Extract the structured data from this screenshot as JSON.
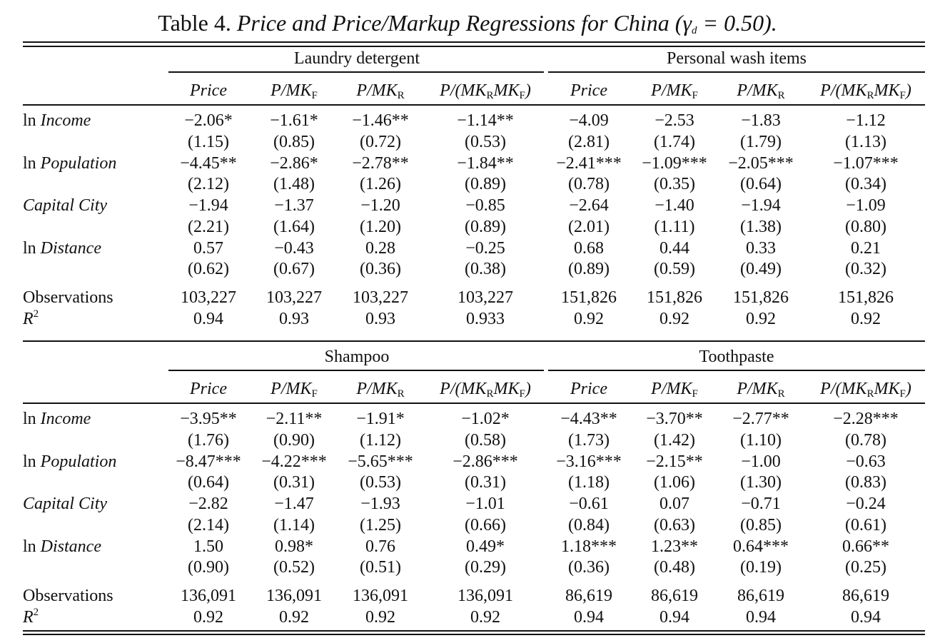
{
  "title": {
    "prefix": "Table 4.",
    "italic": "Price and Price/Markup Regressions for China (γ",
    "sub": "d",
    "suffix": " = 0.50)."
  },
  "column_heads": [
    "Price",
    "P/MK_F",
    "P/MK_R",
    "P/(MK_R MK_F)"
  ],
  "row_labels": {
    "income": {
      "pre": "ln ",
      "it": "Income"
    },
    "population": {
      "pre": "ln ",
      "it": "Population"
    },
    "capital": {
      "pre": "",
      "it": "Capital City"
    },
    "distance": {
      "pre": "ln ",
      "it": "Distance"
    },
    "observations": "Observations",
    "r2": "R"
  },
  "panels": [
    {
      "groups": [
        "Laundry detergent",
        "Personal wash items"
      ],
      "rows": {
        "income": [
          [
            "−2.06*",
            "−1.61*",
            "−1.46**",
            "−1.14**",
            "−4.09",
            "−2.53",
            "−1.83",
            "−1.12"
          ],
          [
            "(1.15)",
            "(0.85)",
            "(0.72)",
            "(0.53)",
            "(2.81)",
            "(1.74)",
            "(1.79)",
            "(1.13)"
          ]
        ],
        "population": [
          [
            "−4.45**",
            "−2.86*",
            "−2.78**",
            "−1.84**",
            "−2.41***",
            "−1.09***",
            "−2.05***",
            "−1.07***"
          ],
          [
            "(2.12)",
            "(1.48)",
            "(1.26)",
            "(0.89)",
            "(0.78)",
            "(0.35)",
            "(0.64)",
            "(0.34)"
          ]
        ],
        "capital": [
          [
            "−1.94",
            "−1.37",
            "−1.20",
            "−0.85",
            "−2.64",
            "−1.40",
            "−1.94",
            "−1.09"
          ],
          [
            "(2.21)",
            "(1.64)",
            "(1.20)",
            "(0.89)",
            "(2.01)",
            "(1.11)",
            "(1.38)",
            "(0.80)"
          ]
        ],
        "distance": [
          [
            "0.57",
            "−0.43",
            "0.28",
            "−0.25",
            "0.68",
            "0.44",
            "0.33",
            "0.21"
          ],
          [
            "(0.62)",
            "(0.67)",
            "(0.36)",
            "(0.38)",
            "(0.89)",
            "(0.59)",
            "(0.49)",
            "(0.32)"
          ]
        ],
        "observations": [
          "103,227",
          "103,227",
          "103,227",
          "103,227",
          "151,826",
          "151,826",
          "151,826",
          "151,826"
        ],
        "r2": [
          "0.94",
          "0.93",
          "0.93",
          "0.933",
          "0.92",
          "0.92",
          "0.92",
          "0.92"
        ]
      }
    },
    {
      "groups": [
        "Shampoo",
        "Toothpaste"
      ],
      "rows": {
        "income": [
          [
            "−3.95**",
            "−2.11**",
            "−1.91*",
            "−1.02*",
            "−4.43**",
            "−3.70**",
            "−2.77**",
            "−2.28***"
          ],
          [
            "(1.76)",
            "(0.90)",
            "(1.12)",
            "(0.58)",
            "(1.73)",
            "(1.42)",
            "(1.10)",
            "(0.78)"
          ]
        ],
        "population": [
          [
            "−8.47***",
            "−4.22***",
            "−5.65***",
            "−2.86***",
            "−3.16***",
            "−2.15**",
            "−1.00",
            "−0.63"
          ],
          [
            "(0.64)",
            "(0.31)",
            "(0.53)",
            "(0.31)",
            "(1.18)",
            "(1.06)",
            "(1.30)",
            "(0.83)"
          ]
        ],
        "capital": [
          [
            "−2.82",
            "−1.47",
            "−1.93",
            "−1.01",
            "−0.61",
            "0.07",
            "−0.71",
            "−0.24"
          ],
          [
            "(2.14)",
            "(1.14)",
            "(1.25)",
            "(0.66)",
            "(0.84)",
            "(0.63)",
            "(0.85)",
            "(0.61)"
          ]
        ],
        "distance": [
          [
            "1.50",
            "0.98*",
            "0.76",
            "0.49*",
            "1.18***",
            "1.23**",
            "0.64***",
            "0.66**"
          ],
          [
            "(0.90)",
            "(0.52)",
            "(0.51)",
            "(0.29)",
            "(0.36)",
            "(0.48)",
            "(0.19)",
            "(0.25)"
          ]
        ],
        "observations": [
          "136,091",
          "136,091",
          "136,091",
          "136,091",
          "86,619",
          "86,619",
          "86,619",
          "86,619"
        ],
        "r2": [
          "0.92",
          "0.92",
          "0.92",
          "0.92",
          "0.94",
          "0.94",
          "0.94",
          "0.94"
        ]
      }
    }
  ]
}
